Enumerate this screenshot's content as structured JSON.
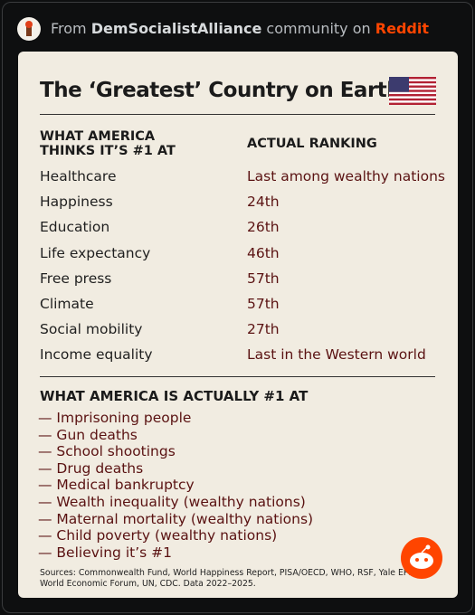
{
  "header": {
    "prefix": "From",
    "community": "DemSocialistAlliance",
    "middle": "community on",
    "site": "Reddit"
  },
  "card": {
    "title": "The ‘Greatest’ Country on Earth",
    "table": {
      "headers": [
        [
          "WHAT AMERICA",
          "THINKS IT’S #1 AT"
        ],
        [
          "ACTUAL RANKING"
        ]
      ],
      "rows": [
        [
          "Healthcare",
          "Last among wealthy nations"
        ],
        [
          "Happiness",
          "24th"
        ],
        [
          "Education",
          "26th"
        ],
        [
          "Life expectancy",
          "46th"
        ],
        [
          "Free press",
          "57th"
        ],
        [
          "Climate",
          "57th"
        ],
        [
          "Social mobility",
          "27th"
        ],
        [
          "Income equality",
          "Last in the Western world"
        ]
      ]
    },
    "section_title": "WHAT AMERICA IS ACTUALLY #1 AT",
    "items": [
      "— Imprisoning people",
      "— Gun deaths",
      "— School shootings",
      "— Drug deaths",
      "— Medical bankruptcy",
      "— Wealth inequality (wealthy nations)",
      "— Maternal mortality (wealthy nations)",
      "— Child poverty (wealthy nations)",
      "— Believing it’s #1"
    ],
    "sources": [
      "Sources: Commonwealth Fund, World Happiness Report, PISA/OECD, WHO, RSF, Yale EPI,",
      "World Economic Forum, UN, CDC. Data 2022–2025."
    ]
  }
}
